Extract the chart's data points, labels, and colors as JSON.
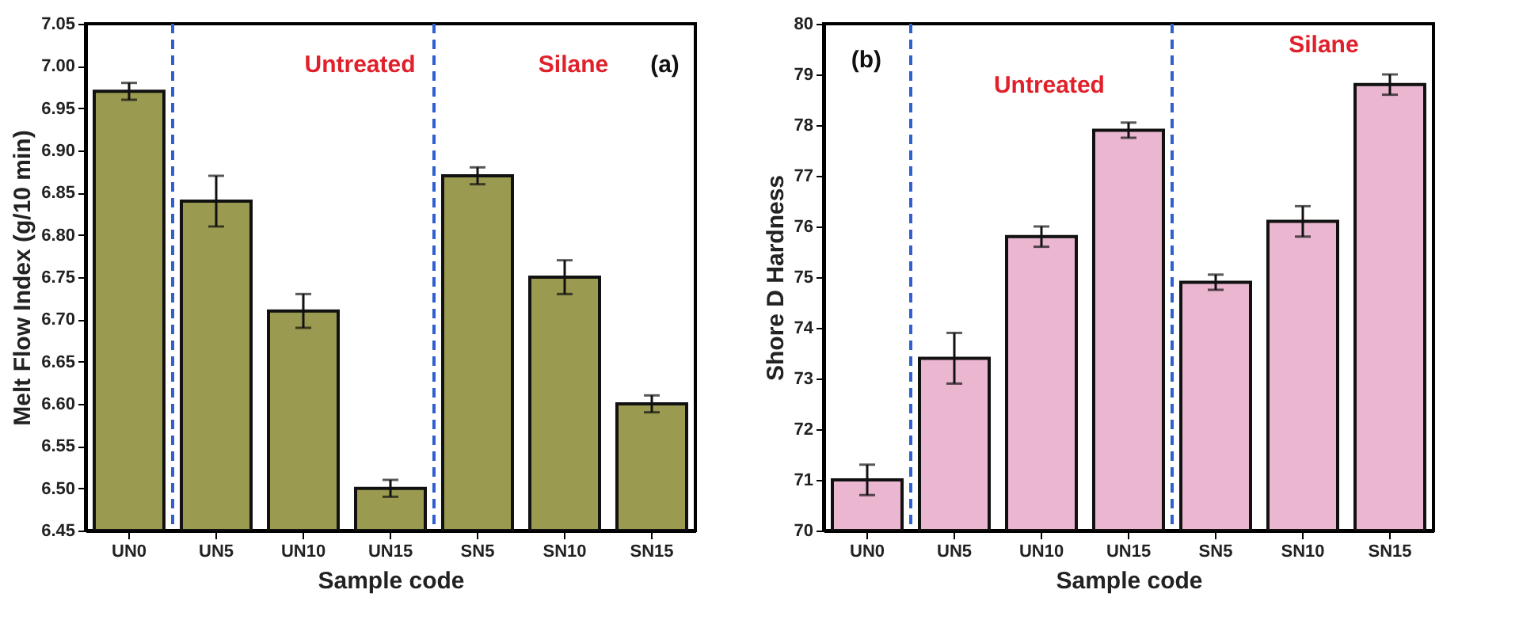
{
  "chart_data": [
    {
      "type": "bar",
      "xlabel": "Sample code",
      "ylabel": "Melt Flow Index (g/10 min)",
      "categories": [
        "UN0",
        "UN5",
        "UN10",
        "UN15",
        "SN5",
        "SN10",
        "SN15"
      ],
      "series": [
        {
          "color": "#9a9a50",
          "values": [
            6.97,
            6.84,
            6.71,
            6.5,
            6.87,
            6.75,
            6.6
          ],
          "errors": [
            0.01,
            0.03,
            0.02,
            0.01,
            0.01,
            0.02,
            0.01
          ]
        }
      ],
      "ylim": [
        6.45,
        7.05
      ],
      "yticks": [
        {
          "value": 6.45,
          "label": "6.45"
        },
        {
          "value": 6.5,
          "label": "6.50"
        },
        {
          "value": 6.55,
          "label": "6.55"
        },
        {
          "value": 6.6,
          "label": "6.60"
        },
        {
          "value": 6.65,
          "label": "6.65"
        },
        {
          "value": 6.7,
          "label": "6.70"
        },
        {
          "value": 6.75,
          "label": "6.75"
        },
        {
          "value": 6.8,
          "label": "6.80"
        },
        {
          "value": 6.85,
          "label": "6.85"
        },
        {
          "value": 6.9,
          "label": "6.90"
        },
        {
          "value": 6.95,
          "label": "6.95"
        },
        {
          "value": 7.0,
          "label": "7.00"
        },
        {
          "value": 7.05,
          "label": "7.05"
        }
      ],
      "annotations": [
        "Untreated",
        "Silane",
        "(a)"
      ],
      "grid": false
    },
    {
      "type": "bar",
      "xlabel": "Sample code",
      "ylabel": "Shore D Hardness",
      "categories": [
        "UN0",
        "UN5",
        "UN10",
        "UN15",
        "SN5",
        "SN10",
        "SN15"
      ],
      "series": [
        {
          "color": "#eab6d0",
          "values": [
            71.0,
            73.4,
            75.8,
            77.9,
            74.9,
            76.1,
            78.8
          ],
          "errors": [
            0.3,
            0.5,
            0.2,
            0.15,
            0.15,
            0.3,
            0.2
          ]
        }
      ],
      "ylim": [
        70,
        80
      ],
      "yticks": [
        70,
        71,
        72,
        73,
        74,
        75,
        76,
        77,
        78,
        79,
        80
      ],
      "annotations": [
        "Untreated",
        "Silane",
        "(b)"
      ],
      "grid": false
    }
  ]
}
